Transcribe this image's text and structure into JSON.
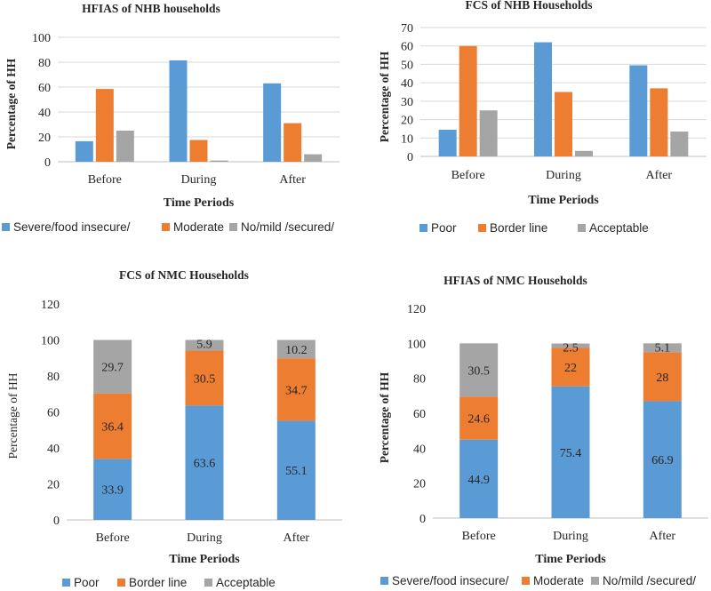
{
  "colors": {
    "blue": "#5b9bd5",
    "orange": "#ed7d31",
    "gray": "#a5a5a5",
    "grid": "#d9d9d9",
    "text": "#262626"
  },
  "chart_data": [
    {
      "id": "hfias-nhb",
      "type": "bar",
      "title": "HFIAS of NHB households",
      "xlabel": "Time Periods",
      "ylabel": "Percentage of HH",
      "categories": [
        "Before",
        "During",
        "After"
      ],
      "ylim": [
        0,
        100
      ],
      "yticks": [
        0,
        20,
        40,
        60,
        80,
        100
      ],
      "grid": true,
      "legend_position": "bottom",
      "series": [
        {
          "name": "Severe/food insecure/",
          "color": "#5b9bd5",
          "values": [
            16.5,
            81.5,
            63
          ]
        },
        {
          "name": "Moderate",
          "color": "#ed7d31",
          "values": [
            58.5,
            17.5,
            31
          ]
        },
        {
          "name": "No/mild /secured/",
          "color": "#a5a5a5",
          "values": [
            25,
            1,
            6
          ]
        }
      ]
    },
    {
      "id": "fcs-nhb",
      "type": "bar",
      "title": "FCS of NHB Households",
      "xlabel": "Time Periods",
      "ylabel": "Percentage of HH",
      "categories": [
        "Before",
        "During",
        "After"
      ],
      "ylim": [
        0,
        70
      ],
      "yticks": [
        0,
        10,
        20,
        30,
        40,
        50,
        60,
        70
      ],
      "grid": true,
      "legend_position": "bottom",
      "series": [
        {
          "name": "Poor",
          "color": "#5b9bd5",
          "values": [
            14.5,
            62,
            49.5
          ]
        },
        {
          "name": "Border line",
          "color": "#ed7d31",
          "values": [
            60,
            35,
            37
          ]
        },
        {
          "name": "Acceptable",
          "color": "#a5a5a5",
          "values": [
            25,
            3,
            13.5
          ]
        }
      ]
    },
    {
      "id": "fcs-nmc",
      "type": "stacked-bar",
      "title": "FCS of NMC Households",
      "xlabel": "Time Periods",
      "ylabel": "Percentage of HH",
      "categories": [
        "Before",
        "During",
        "After"
      ],
      "ylim": [
        0,
        120
      ],
      "yticks": [
        0,
        20,
        40,
        60,
        80,
        100,
        120
      ],
      "grid": false,
      "legend_position": "bottom",
      "series": [
        {
          "name": "Poor",
          "color": "#5b9bd5",
          "values": [
            33.9,
            63.6,
            55.1
          ],
          "labels": [
            "33.9",
            "63.6",
            "55.1"
          ]
        },
        {
          "name": "Border line",
          "color": "#ed7d31",
          "values": [
            36.4,
            30.5,
            34.7
          ],
          "labels": [
            "36.4",
            "30.5",
            "34.7"
          ]
        },
        {
          "name": "Acceptable",
          "color": "#a5a5a5",
          "values": [
            29.7,
            5.9,
            10.2
          ],
          "labels": [
            "29.7",
            "5.9",
            "10.2"
          ]
        }
      ]
    },
    {
      "id": "hfias-nmc",
      "type": "stacked-bar",
      "title": "HFIAS of NMC Households",
      "xlabel": "Time Periods",
      "ylabel": "Percentage of HH",
      "categories": [
        "Before",
        "During",
        "After"
      ],
      "ylim": [
        0,
        120
      ],
      "yticks": [
        0,
        20,
        40,
        60,
        80,
        100,
        120
      ],
      "grid": false,
      "legend_position": "bottom",
      "series": [
        {
          "name": "Severe/food insecure/",
          "color": "#5b9bd5",
          "values": [
            44.9,
            75.4,
            66.9
          ],
          "labels": [
            "44.9",
            "75.4",
            "66.9"
          ]
        },
        {
          "name": "Moderate",
          "color": "#ed7d31",
          "values": [
            24.6,
            22,
            28
          ],
          "labels": [
            "24.6",
            "22",
            "28"
          ]
        },
        {
          "name": "No/mild /secured/",
          "color": "#a5a5a5",
          "values": [
            30.5,
            2.5,
            5.1
          ],
          "labels": [
            "30.5",
            "2.5",
            "5.1"
          ]
        }
      ]
    }
  ]
}
